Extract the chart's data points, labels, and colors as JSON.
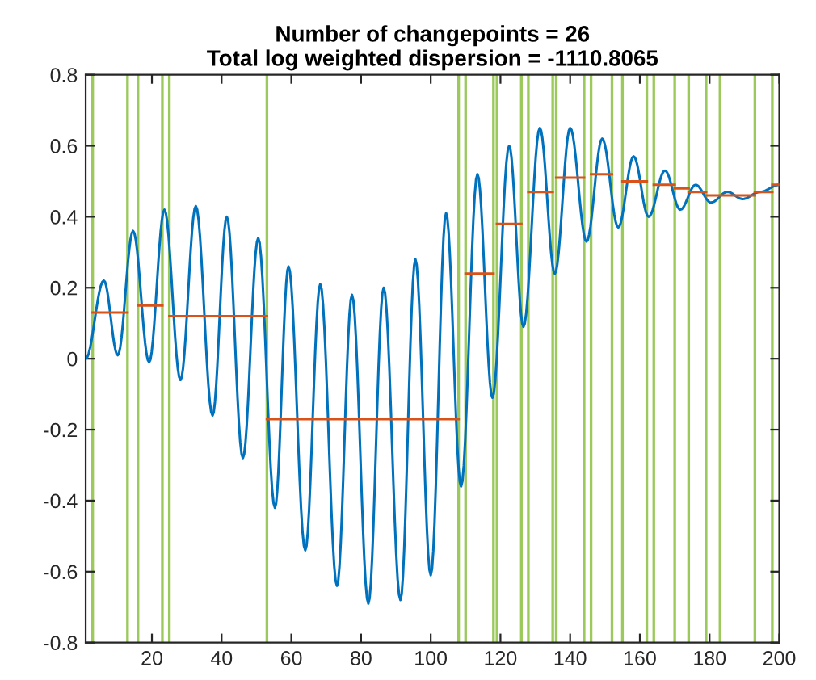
{
  "chart_data": {
    "type": "line",
    "title": "Number of changepoints = 26\nTotal log weighted dispersion = -1110.8065",
    "xlim": [
      1,
      200
    ],
    "ylim": [
      -0.8,
      0.8
    ],
    "xticks": [
      20,
      40,
      60,
      80,
      100,
      120,
      140,
      160,
      180,
      200
    ],
    "yticks": [
      -0.8,
      -0.6,
      -0.4,
      -0.2,
      0,
      0.2,
      0.4,
      0.6,
      0.8
    ],
    "grid": false,
    "marker": "none",
    "line_style": "solid",
    "series": [
      {
        "color": "#0072bd",
        "x": [
          1,
          6.2,
          10.2,
          14.6,
          19.2,
          23.6,
          28.2,
          32.6,
          37.4,
          41.5,
          46.1,
          50.5,
          55.3,
          59.2,
          64.0,
          68.3,
          73.1,
          77.4,
          82.1,
          86.5,
          91.3,
          95.6,
          100,
          104.4,
          108.7,
          113.4,
          117.7,
          122.5,
          126.6,
          131.3,
          135.6,
          140,
          144.7,
          149.2,
          153.8,
          158.2,
          162.5,
          167.2,
          171.6,
          176,
          180.4,
          185.1,
          189.5,
          194.5,
          200
        ],
        "values": [
          0.0,
          0.22,
          0.01,
          0.36,
          -0.01,
          0.42,
          -0.06,
          0.43,
          -0.16,
          0.4,
          -0.28,
          0.34,
          -0.42,
          0.26,
          -0.54,
          0.21,
          -0.64,
          0.18,
          -0.69,
          0.2,
          -0.68,
          0.28,
          -0.61,
          0.41,
          -0.36,
          0.52,
          -0.11,
          0.6,
          0.09,
          0.65,
          0.24,
          0.65,
          0.33,
          0.62,
          0.37,
          0.57,
          0.4,
          0.53,
          0.42,
          0.49,
          0.44,
          0.47,
          0.45,
          0.47,
          0.49
        ]
      },
      {
        "color": "#d95319",
        "x": [
          3,
          13,
          null,
          16,
          23,
          null,
          25,
          53,
          null,
          53,
          108,
          null,
          110,
          118,
          null,
          119,
          126,
          null,
          128,
          135,
          null,
          136,
          144,
          null,
          146,
          152,
          null,
          155,
          162,
          null,
          164,
          170,
          null,
          170,
          174,
          null,
          174,
          179,
          null,
          179,
          183,
          null,
          183,
          193,
          null,
          193,
          198,
          null,
          198,
          200
        ],
        "values": [
          0.13,
          0.13,
          null,
          0.15,
          0.15,
          null,
          0.12,
          0.12,
          null,
          -0.17,
          -0.17,
          null,
          0.24,
          0.24,
          null,
          0.38,
          0.38,
          null,
          0.47,
          0.47,
          null,
          0.51,
          0.51,
          null,
          0.52,
          0.52,
          null,
          0.5,
          0.5,
          null,
          0.49,
          0.49,
          null,
          0.48,
          0.48,
          null,
          0.47,
          0.47,
          null,
          0.46,
          0.46,
          null,
          0.46,
          0.46,
          null,
          0.47,
          0.47,
          null,
          0.49,
          0.49
        ]
      }
    ],
    "ref_lines": [
      {
        "axis": "x",
        "value": 3,
        "color": "#9cc95c"
      },
      {
        "axis": "x",
        "value": 13,
        "color": "#9cc95c"
      },
      {
        "axis": "x",
        "value": 16,
        "color": "#9cc95c"
      },
      {
        "axis": "x",
        "value": 23,
        "color": "#9cc95c"
      },
      {
        "axis": "x",
        "value": 25,
        "color": "#9cc95c"
      },
      {
        "axis": "x",
        "value": 53,
        "color": "#9cc95c"
      },
      {
        "axis": "x",
        "value": 108,
        "color": "#9cc95c"
      },
      {
        "axis": "x",
        "value": 110,
        "color": "#9cc95c"
      },
      {
        "axis": "x",
        "value": 118,
        "color": "#9cc95c"
      },
      {
        "axis": "x",
        "value": 119,
        "color": "#9cc95c"
      },
      {
        "axis": "x",
        "value": 126,
        "color": "#9cc95c"
      },
      {
        "axis": "x",
        "value": 128,
        "color": "#9cc95c"
      },
      {
        "axis": "x",
        "value": 135,
        "color": "#9cc95c"
      },
      {
        "axis": "x",
        "value": 136,
        "color": "#9cc95c"
      },
      {
        "axis": "x",
        "value": 144,
        "color": "#9cc95c"
      },
      {
        "axis": "x",
        "value": 146,
        "color": "#9cc95c"
      },
      {
        "axis": "x",
        "value": 152,
        "color": "#9cc95c"
      },
      {
        "axis": "x",
        "value": 155,
        "color": "#9cc95c"
      },
      {
        "axis": "x",
        "value": 162,
        "color": "#9cc95c"
      },
      {
        "axis": "x",
        "value": 164,
        "color": "#9cc95c"
      },
      {
        "axis": "x",
        "value": 170,
        "color": "#9cc95c"
      },
      {
        "axis": "x",
        "value": 174,
        "color": "#9cc95c"
      },
      {
        "axis": "x",
        "value": 179,
        "color": "#9cc95c"
      },
      {
        "axis": "x",
        "value": 183,
        "color": "#9cc95c"
      },
      {
        "axis": "x",
        "value": 193,
        "color": "#9cc95c"
      },
      {
        "axis": "x",
        "value": 198,
        "color": "#9cc95c"
      }
    ]
  }
}
